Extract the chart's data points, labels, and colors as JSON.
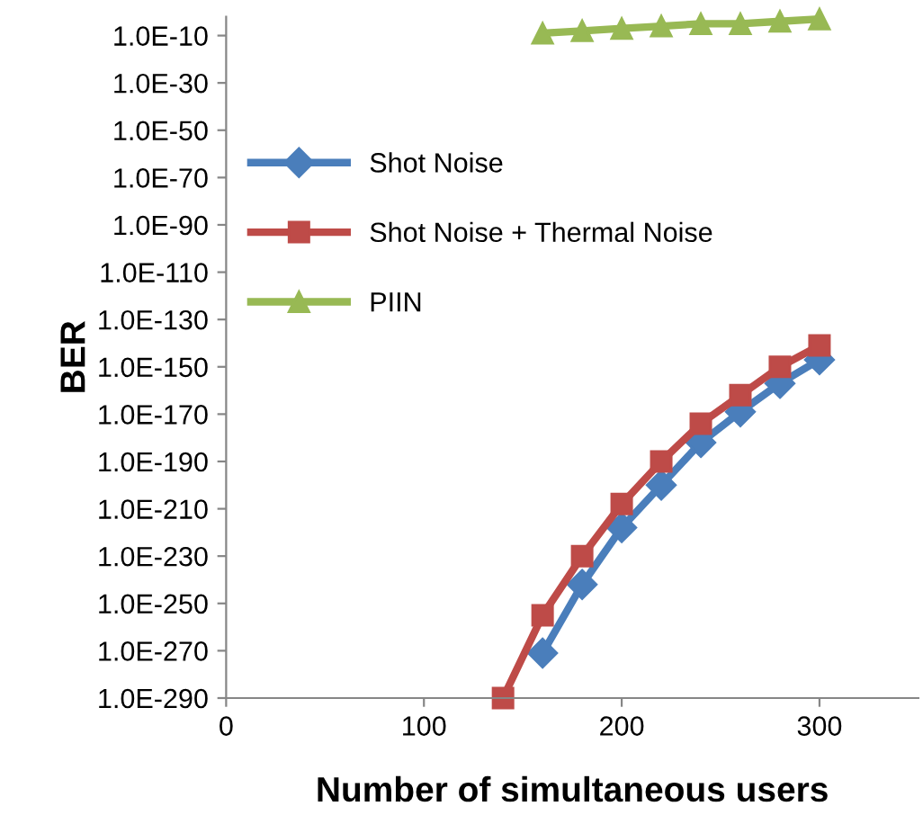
{
  "chart_data": {
    "type": "line",
    "xlabel": "Number of simultaneous users",
    "ylabel": "BER",
    "log": "y",
    "xlim": [
      0,
      350
    ],
    "xticks": [
      0,
      100,
      200,
      300
    ],
    "ylim": [
      1e-290,
      0.01
    ],
    "yticks": [
      {
        "value": 1e-10,
        "label": "1.0E-10"
      },
      {
        "value": 1e-30,
        "label": "1.0E-30"
      },
      {
        "value": 1e-50,
        "label": "1.0E-50"
      },
      {
        "value": 1e-70,
        "label": "1.0E-70"
      },
      {
        "value": 1e-90,
        "label": "1.0E-90"
      },
      {
        "value": 1e-110,
        "label": "1.0E-110"
      },
      {
        "value": 1e-130,
        "label": "1.0E-130"
      },
      {
        "value": 1e-150,
        "label": "1.0E-150"
      },
      {
        "value": 1e-170,
        "label": "1.0E-170"
      },
      {
        "value": 1e-190,
        "label": "1.0E-190"
      },
      {
        "value": 1e-210,
        "label": "1.0E-210"
      },
      {
        "value": 1e-230,
        "label": "1.0E-230"
      },
      {
        "value": 1e-250,
        "label": "1.0E-250"
      },
      {
        "value": 1e-270,
        "label": "1.0E-270"
      },
      {
        "value": 1e-290,
        "label": "1.0E-290"
      }
    ],
    "grid": false,
    "legend": "left",
    "line_style": "solid",
    "series": [
      {
        "name": "Shot Noise",
        "color": "#4a7ebb",
        "marker": "diamond",
        "x": [
          160,
          180,
          200,
          220,
          240,
          260,
          280,
          300
        ],
        "values": [
          1e-271,
          1e-242,
          1e-218,
          1e-200,
          1e-182,
          1e-169,
          1e-157,
          1e-147
        ]
      },
      {
        "name": "Shot Noise + Thermal Noise",
        "color": "#be4b48",
        "marker": "square",
        "x": [
          140,
          160,
          180,
          200,
          220,
          240,
          260,
          280,
          300
        ],
        "values": [
          1e-290,
          1e-255,
          1e-230,
          1e-208,
          1e-190,
          1e-174,
          1e-162,
          1e-150,
          1e-141
        ]
      },
      {
        "name": "PIIN",
        "color": "#98b954",
        "marker": "triangle",
        "x": [
          160,
          180,
          200,
          220,
          240,
          260,
          280,
          300
        ],
        "values": [
          1e-09,
          1e-08,
          1e-07,
          1e-06,
          1e-05,
          1e-05,
          0.0001,
          0.001
        ]
      }
    ]
  }
}
